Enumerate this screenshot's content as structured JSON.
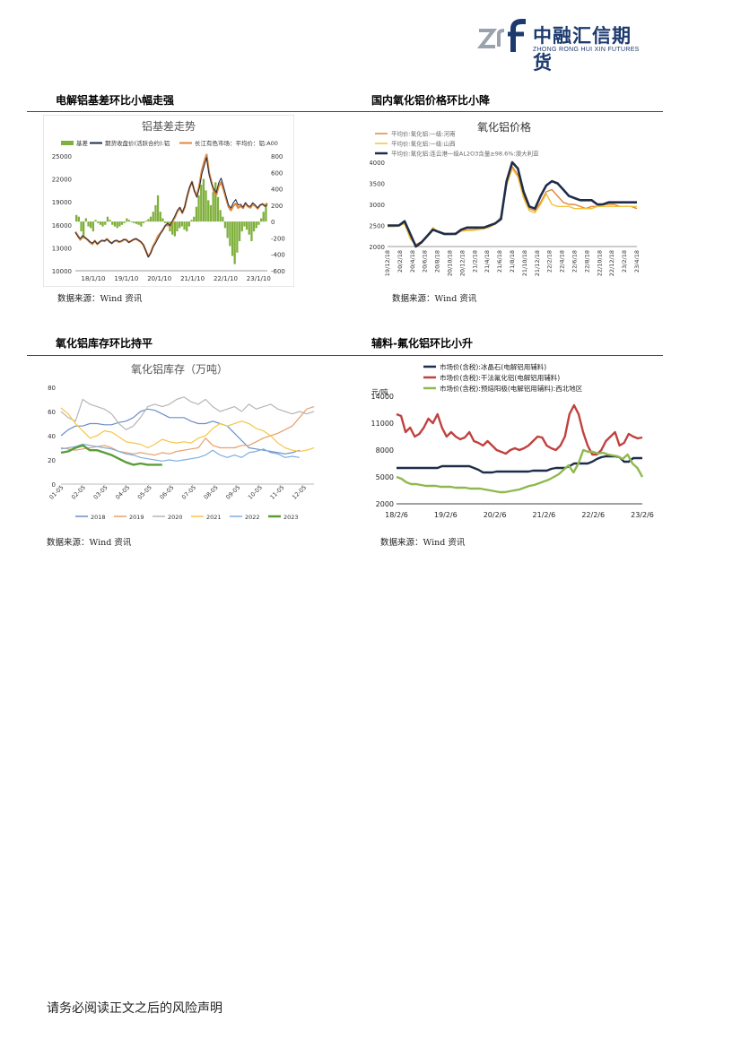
{
  "header": {
    "logo_cn": "中融汇信期货",
    "logo_en": "ZHONG RONG HUI XIN FUTURES"
  },
  "sections": [
    {
      "title": "电解铝基差环比小幅走强",
      "source": "数据来源：Wind 资讯"
    },
    {
      "title": "国内氧化铝价格环比小降",
      "source": "数据来源：Wind 资讯"
    },
    {
      "title": "氧化铝库存环比持平",
      "source": "数据来源：Wind 资讯"
    },
    {
      "title": "辅料-氟化铝环比小升",
      "source": "数据来源：Wind 资讯"
    }
  ],
  "footer": "请务必阅读正文之后的风险声明",
  "chart_data": [
    {
      "type": "line",
      "title": "铝基差走势",
      "x_ticks": [
        "18/1/10",
        "19/1/10",
        "20/1/10",
        "21/1/10",
        "22/1/10",
        "23/1/10"
      ],
      "ylim_left": [
        10000,
        25000
      ],
      "y_ticks_left": [
        10000,
        13000,
        16000,
        19000,
        22000,
        25000
      ],
      "ylim_right": [
        -600,
        800
      ],
      "y_ticks_right": [
        -600,
        -400,
        -200,
        0,
        200,
        400,
        600,
        800
      ],
      "series": [
        {
          "name": "基差",
          "axis": "right",
          "kind": "bar",
          "color": "#7fb03c",
          "values": [
            80,
            60,
            -120,
            -200,
            40,
            -60,
            -80,
            -120,
            20,
            -20,
            -40,
            -60,
            -40,
            60,
            20,
            -40,
            -60,
            -80,
            -60,
            -40,
            -20,
            40,
            20,
            -10,
            -20,
            -30,
            -40,
            -60,
            -20,
            10,
            30,
            60,
            120,
            200,
            320,
            120,
            40,
            -20,
            -60,
            -120,
            -160,
            -180,
            -120,
            -80,
            -60,
            -100,
            -120,
            -60,
            20,
            60,
            180,
            320,
            450,
            520,
            380,
            260,
            200,
            360,
            480,
            300,
            140,
            60,
            -80,
            -200,
            -300,
            -420,
            -520,
            -380,
            -240,
            -120,
            -60,
            -100,
            -160,
            -240,
            -120,
            -80,
            -40,
            40,
            120,
            220
          ]
        },
        {
          "name": "期货收盘价(活跃合约):铝",
          "axis": "left",
          "kind": "line",
          "color": "#1f2d4a",
          "values": [
            15000,
            14500,
            14200,
            14600,
            14300,
            14100,
            13800,
            13600,
            13900,
            13500,
            13800,
            14000,
            13900,
            14100,
            13800,
            13600,
            13900,
            14000,
            13800,
            13900,
            14100,
            14000,
            13700,
            13900,
            14100,
            14200,
            14000,
            13800,
            13400,
            12600,
            11800,
            12300,
            13100,
            13600,
            14200,
            14800,
            15300,
            15900,
            16200,
            15900,
            16600,
            17200,
            17900,
            18300,
            17600,
            18400,
            19800,
            20900,
            21600,
            20400,
            19600,
            20800,
            22600,
            23700,
            24800,
            22600,
            21400,
            20700,
            20200,
            21500,
            22100,
            21000,
            19800,
            18600,
            18200,
            18900,
            19300,
            18600,
            18700,
            18300,
            18900,
            18500,
            18400,
            18900,
            18600,
            18200,
            18600,
            18700,
            18400,
            18600
          ]
        },
        {
          "name": "长江有色市场：平均价：铝:A00",
          "axis": "left",
          "kind": "line",
          "color": "#e0873a",
          "values": [
            15100,
            14600,
            14050,
            14400,
            14350,
            14050,
            13720,
            13480,
            13920,
            13480,
            13760,
            13940,
            13860,
            14160,
            13820,
            13560,
            13840,
            13920,
            13740,
            13860,
            14080,
            14040,
            13720,
            13890,
            14080,
            14170,
            13960,
            13740,
            13380,
            12610,
            11830,
            12360,
            13220,
            13800,
            14520,
            14920,
            15340,
            15880,
            16140,
            15780,
            16440,
            17020,
            17780,
            18220,
            17540,
            18300,
            19680,
            20840,
            21620,
            20460,
            19780,
            21120,
            23050,
            24220,
            25180,
            22860,
            21600,
            20320,
            19900,
            21080,
            21580,
            20600,
            19520,
            18380,
            17900,
            18480,
            18780,
            18220,
            18460,
            18180,
            18840,
            18400,
            18240,
            18660,
            18480,
            18120,
            18560,
            18740,
            18520,
            18820
          ]
        }
      ]
    },
    {
      "type": "line",
      "title": "氧化铝价格",
      "x_ticks": [
        "19/12/18",
        "20/2/18",
        "20/4/18",
        "20/6/18",
        "20/8/18",
        "20/10/18",
        "20/12/18",
        "21/2/18",
        "21/4/18",
        "21/6/18",
        "21/8/18",
        "21/10/18",
        "21/12/18",
        "22/2/18",
        "22/4/18",
        "22/6/18",
        "22/8/18",
        "22/10/18",
        "22/12/18",
        "23/2/18",
        "23/4/18"
      ],
      "ylim": [
        2000,
        4000
      ],
      "y_ticks": [
        2000,
        2500,
        3000,
        3500,
        4000
      ],
      "series": [
        {
          "name": "平均价:氧化铝:一级:河南",
          "color": "#e0873a",
          "values": [
            2480,
            2480,
            2500,
            2560,
            2200,
            2050,
            2120,
            2250,
            2400,
            2350,
            2300,
            2300,
            2320,
            2380,
            2400,
            2400,
            2420,
            2450,
            2480,
            2550,
            2700,
            3500,
            3900,
            3700,
            3200,
            2900,
            2850,
            3050,
            3300,
            3350,
            3200,
            3050,
            3000,
            3000,
            2950,
            2900,
            2950,
            2950,
            3000,
            3000,
            3000,
            2950,
            2950,
            2950,
            2900
          ]
        },
        {
          "name": "平均价:氧化铝:一级:山西",
          "color": "#f2c23a",
          "values": [
            2470,
            2470,
            2490,
            2540,
            2180,
            2030,
            2100,
            2250,
            2450,
            2340,
            2280,
            2280,
            2300,
            2360,
            2380,
            2380,
            2400,
            2420,
            2460,
            2530,
            2680,
            3450,
            3850,
            3650,
            3150,
            2850,
            2800,
            3000,
            3250,
            3000,
            2950,
            2950,
            2950,
            2900,
            2900,
            2900,
            2900,
            2950,
            2950,
            2950,
            2950,
            2950,
            2950,
            2950,
            2950
          ]
        },
        {
          "name": "平均价:氧化铝:连云港一级AL2O3含量≥98.6%:澳大利亚",
          "color": "#1f2d4a",
          "values": [
            2500,
            2500,
            2500,
            2600,
            2300,
            2000,
            2100,
            2250,
            2400,
            2350,
            2300,
            2300,
            2300,
            2400,
            2450,
            2450,
            2450,
            2450,
            2500,
            2550,
            2650,
            3550,
            4000,
            3850,
            3300,
            2950,
            2900,
            3200,
            3450,
            3550,
            3500,
            3350,
            3200,
            3150,
            3100,
            3100,
            3100,
            3000,
            3000,
            3050,
            3050,
            3050,
            3050,
            3050,
            3050
          ]
        }
      ]
    },
    {
      "type": "line",
      "title": "氧化铝库存（万吨）",
      "x_ticks": [
        "01-05",
        "02-05",
        "03-05",
        "04-05",
        "05-05",
        "06-05",
        "07-05",
        "08-05",
        "09-05",
        "10-05",
        "11-05",
        "12-05"
      ],
      "ylim": [
        0,
        80
      ],
      "y_ticks": [
        0,
        20,
        40,
        60,
        80
      ],
      "series": [
        {
          "name": "2018",
          "color": "#6b8fc8",
          "values": [
            40,
            45,
            48,
            48,
            50,
            50,
            49,
            49,
            51,
            52,
            55,
            60,
            62,
            61,
            58,
            55,
            55,
            55,
            52,
            50,
            50,
            52,
            50,
            48,
            42,
            36,
            30,
            29,
            28,
            27,
            26,
            25,
            26,
            28
          ]
        },
        {
          "name": "2019",
          "color": "#e8a06a",
          "values": [
            30,
            29,
            28,
            29,
            30,
            31,
            32,
            30,
            27,
            26,
            25,
            26,
            25,
            24,
            26,
            25,
            27,
            28,
            29,
            30,
            38,
            32,
            30,
            30,
            30,
            32,
            32,
            35,
            38,
            40,
            42,
            45,
            48,
            55,
            62,
            64
          ]
        },
        {
          "name": "2020",
          "color": "#b6b6b6",
          "values": [
            60,
            55,
            52,
            70,
            66,
            64,
            62,
            58,
            50,
            45,
            48,
            55,
            64,
            66,
            64,
            66,
            70,
            72,
            68,
            66,
            70,
            64,
            60,
            62,
            64,
            60,
            66,
            62,
            64,
            66,
            62,
            60,
            58,
            60,
            58,
            60
          ]
        },
        {
          "name": "2021",
          "color": "#f6c649",
          "values": [
            63,
            58,
            50,
            44,
            38,
            40,
            44,
            43,
            39,
            35,
            34,
            33,
            30,
            33,
            37,
            35,
            34,
            35,
            34,
            38,
            40,
            46,
            50,
            48,
            50,
            52,
            50,
            46,
            44,
            40,
            34,
            30,
            28,
            27,
            28,
            30
          ]
        },
        {
          "name": "2022",
          "color": "#7eaee0",
          "values": [
            29,
            30,
            31,
            33,
            32,
            31,
            30,
            29,
            27,
            25,
            24,
            22,
            21,
            20,
            19,
            20,
            19,
            20,
            21,
            22,
            24,
            28,
            24,
            22,
            24,
            22,
            26,
            27,
            29,
            26,
            25,
            22,
            23,
            22
          ]
        },
        {
          "name": "2023",
          "color": "#5a9d3a",
          "values": [
            26,
            27,
            30,
            32,
            28,
            28,
            26,
            24,
            21,
            18,
            16,
            17,
            16,
            16,
            16
          ]
        }
      ]
    },
    {
      "type": "line",
      "title": "",
      "ylabel": "元/吨",
      "x_ticks": [
        "18/2/6",
        "19/2/6",
        "20/2/6",
        "21/2/6",
        "22/2/6",
        "23/2/6"
      ],
      "ylim": [
        2000,
        14000
      ],
      "y_ticks": [
        2000,
        5000,
        8000,
        11000,
        14000
      ],
      "series": [
        {
          "name": "市场价(含税):冰晶石(电解铝用辅料)",
          "color": "#1f2d4a",
          "values": [
            6000,
            6000,
            6000,
            6000,
            6000,
            6000,
            6000,
            6000,
            6000,
            6000,
            6200,
            6200,
            6200,
            6200,
            6200,
            6200,
            6200,
            6000,
            5800,
            5500,
            5500,
            5500,
            5600,
            5600,
            5600,
            5600,
            5600,
            5600,
            5600,
            5600,
            5700,
            5700,
            5700,
            5700,
            5900,
            6000,
            6000,
            6000,
            6200,
            6500,
            6500,
            6500,
            6500,
            6700,
            7000,
            7200,
            7300,
            7300,
            7300,
            7200,
            6700,
            6700,
            7100,
            7100,
            7100
          ]
        },
        {
          "name": "市场价(含税):干法氟化铝(电解铝用辅料)",
          "color": "#c0413f",
          "values": [
            12000,
            11800,
            10000,
            10500,
            9500,
            9800,
            10500,
            11500,
            11000,
            12000,
            10500,
            9500,
            10000,
            9500,
            9200,
            9400,
            10000,
            9000,
            8800,
            8500,
            9000,
            8500,
            8000,
            7800,
            7600,
            8000,
            8200,
            8000,
            8200,
            8500,
            9000,
            9500,
            9400,
            8500,
            8200,
            8000,
            8500,
            9500,
            12000,
            13000,
            12000,
            10000,
            8500,
            7500,
            7500,
            8000,
            9000,
            9500,
            10000,
            8500,
            8800,
            9800,
            9500,
            9300,
            9400
          ]
        },
        {
          "name": "市场价(含税):预焙阳极(电解铝用辅料):西北地区",
          "color": "#8fb84e",
          "values": [
            5000,
            4800,
            4400,
            4200,
            4200,
            4100,
            4000,
            4000,
            4000,
            3900,
            3900,
            3900,
            3800,
            3800,
            3800,
            3700,
            3700,
            3700,
            3600,
            3500,
            3400,
            3300,
            3300,
            3400,
            3500,
            3600,
            3800,
            4000,
            4100,
            4300,
            4500,
            4700,
            5000,
            5300,
            5800,
            6300,
            5500,
            6500,
            8000,
            7800,
            7800,
            7600,
            7700,
            7500,
            7400,
            7300,
            7000,
            7500,
            6500,
            6000,
            5000
          ]
        }
      ]
    }
  ]
}
